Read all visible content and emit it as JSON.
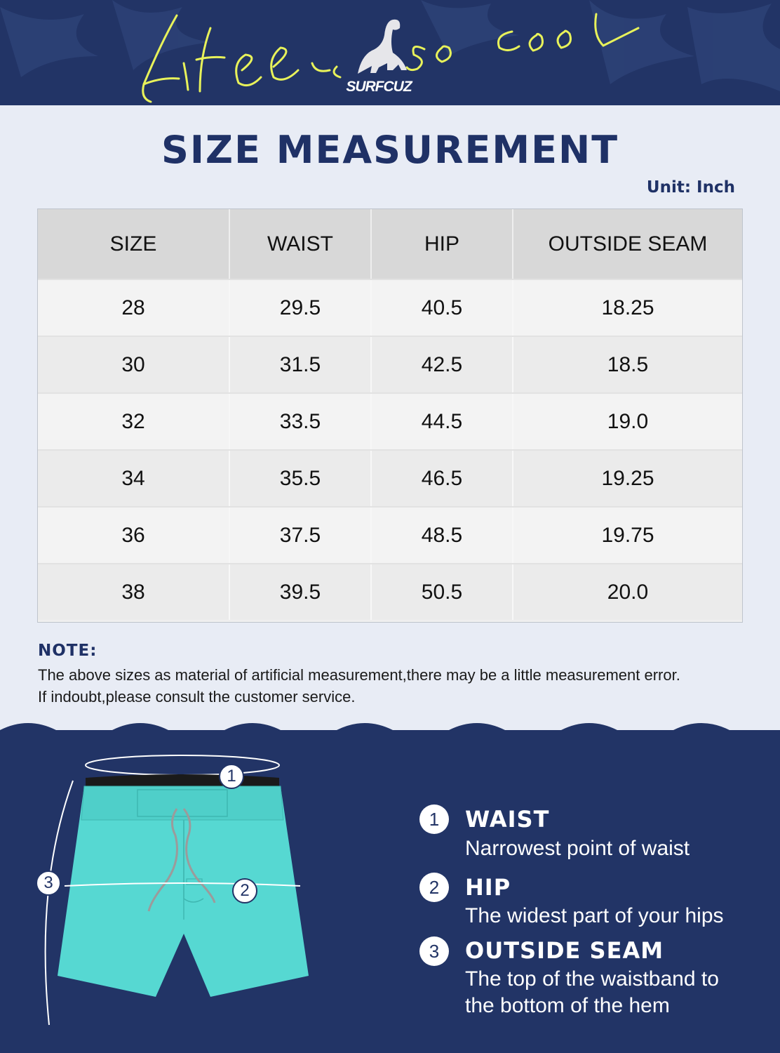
{
  "header": {
    "script_text": "Life is so cool",
    "brand": "SURFCUZ"
  },
  "title": "SIZE MEASUREMENT",
  "unit": "Unit: Inch",
  "table": {
    "headers": [
      "SIZE",
      "WAIST",
      "HIP",
      "OUTSIDE SEAM"
    ],
    "rows": [
      [
        "28",
        "29.5",
        "40.5",
        "18.25"
      ],
      [
        "30",
        "31.5",
        "42.5",
        "18.5"
      ],
      [
        "32",
        "33.5",
        "44.5",
        "19.0"
      ],
      [
        "34",
        "35.5",
        "46.5",
        "19.25"
      ],
      [
        "36",
        "37.5",
        "48.5",
        "19.75"
      ],
      [
        "38",
        "39.5",
        "50.5",
        "20.0"
      ]
    ]
  },
  "note": {
    "title": "NOTE:",
    "line1": "The above sizes as material of artificial measurement,there may be a little measurement error.",
    "line2": "If indoubt,please consult the customer service."
  },
  "diagram": {
    "markers": [
      "1",
      "2",
      "3"
    ]
  },
  "legend": [
    {
      "num": "1",
      "title": "WAIST",
      "desc": [
        "Narrowest point of waist"
      ]
    },
    {
      "num": "2",
      "title": "HIP",
      "desc": [
        "The widest part of your hips"
      ]
    },
    {
      "num": "3",
      "title": "OUTSIDE SEAM",
      "desc": [
        "The top of the waistband to",
        "the bottom of the hem"
      ]
    }
  ],
  "colors": {
    "navy": "#223466",
    "title_navy": "#1f3166",
    "page_bg": "#e8ecf5",
    "shorts_teal": "#56d8d2",
    "script_yellow": "#e8f25a"
  }
}
